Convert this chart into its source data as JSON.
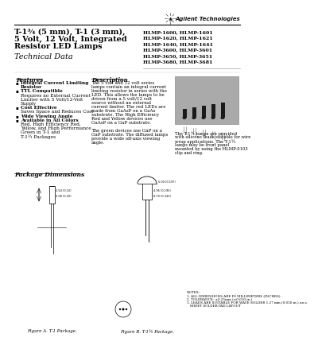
{
  "title_line1": "T-1¾ (5 mm), T-1 (3 mm),",
  "title_line2": "5 Volt, 12 Volt, Integrated",
  "title_line3": "Resistor LED Lamps",
  "subtitle": "Technical Data",
  "brand": "Agilent Technologies",
  "part_numbers": [
    "HLMP-1600, HLMP-1601",
    "HLMP-1620, HLMP-1621",
    "HLMP-1640, HLMP-1641",
    "HLMP-3600, HLMP-3601",
    "HLMP-3650, HLMP-3651",
    "HLMP-3680, HLMP-3681"
  ],
  "features_title": "Features",
  "feat_lines": [
    [
      "Integral Current Limiting",
      true,
      true
    ],
    [
      "Resistor",
      false,
      true
    ],
    [
      "TTL Compatible",
      true,
      true
    ],
    [
      "Requires no External Current",
      false,
      false
    ],
    [
      "Limiter with 5 Volt/12-Volt",
      false,
      false
    ],
    [
      "Supply",
      false,
      false
    ],
    [
      "Cost Effective",
      true,
      true
    ],
    [
      "Saves Space and Reduces Cost",
      false,
      false
    ],
    [
      "Wide Viewing Angle",
      true,
      true
    ],
    [
      "Available in All Colors",
      true,
      true
    ],
    [
      "Red, High Efficiency Red,",
      false,
      false
    ],
    [
      "Yellow, and High Performance",
      false,
      false
    ],
    [
      "Green in T-1 and",
      false,
      false
    ],
    [
      "T-1¾ Packages",
      false,
      false
    ]
  ],
  "feat_bullets": [
    0,
    2,
    6,
    8,
    9
  ],
  "desc_title": "Description",
  "desc_lines": [
    "The 5 volt and 12 volt series",
    "lamps contain an integral current",
    "limiting resistor in series with the",
    "LED. This allows the lamps to be",
    "driven from a 5 volt/12 volt",
    "source without an external",
    "current limiter. The red LEDs are",
    "made from GaAsP on a GaAs",
    "substrate. The High Efficiency",
    "Red and Yellow devices use",
    "GaAsP on a GaP substrate.",
    "",
    "The green devices use GaP on a",
    "GaP substrate. The diffused lamps",
    "provide a wide off-axis viewing",
    "angle."
  ],
  "right_desc_lines": [
    "The T-1¾ lamps are provided",
    "with silicone leads suitable for wire",
    "wrap applications. The T-1¾",
    "lamps may be front panel",
    "mounted by using the HLMP-0103",
    "clip and ring."
  ],
  "pkg_title": "Package Dimensions",
  "fig_a": "Figure A. T-1 Package.",
  "fig_b": "Figure B. T-1¾ Package.",
  "notes": [
    "NOTES:",
    "1. ALL DIMENSIONS ARE IN MILLIMETERS (INCHES).",
    "2. TOLERANCE: ±0.25mm (±0.010 in.)",
    "3. LEADS ARE SUITABLE FOR WAVE SOLDER 1.27 mm (0.050 in.) on a",
    "   SHEET SOLDER PAD LAYOUT"
  ],
  "bg_color": "#ffffff",
  "text_color": "#000000"
}
